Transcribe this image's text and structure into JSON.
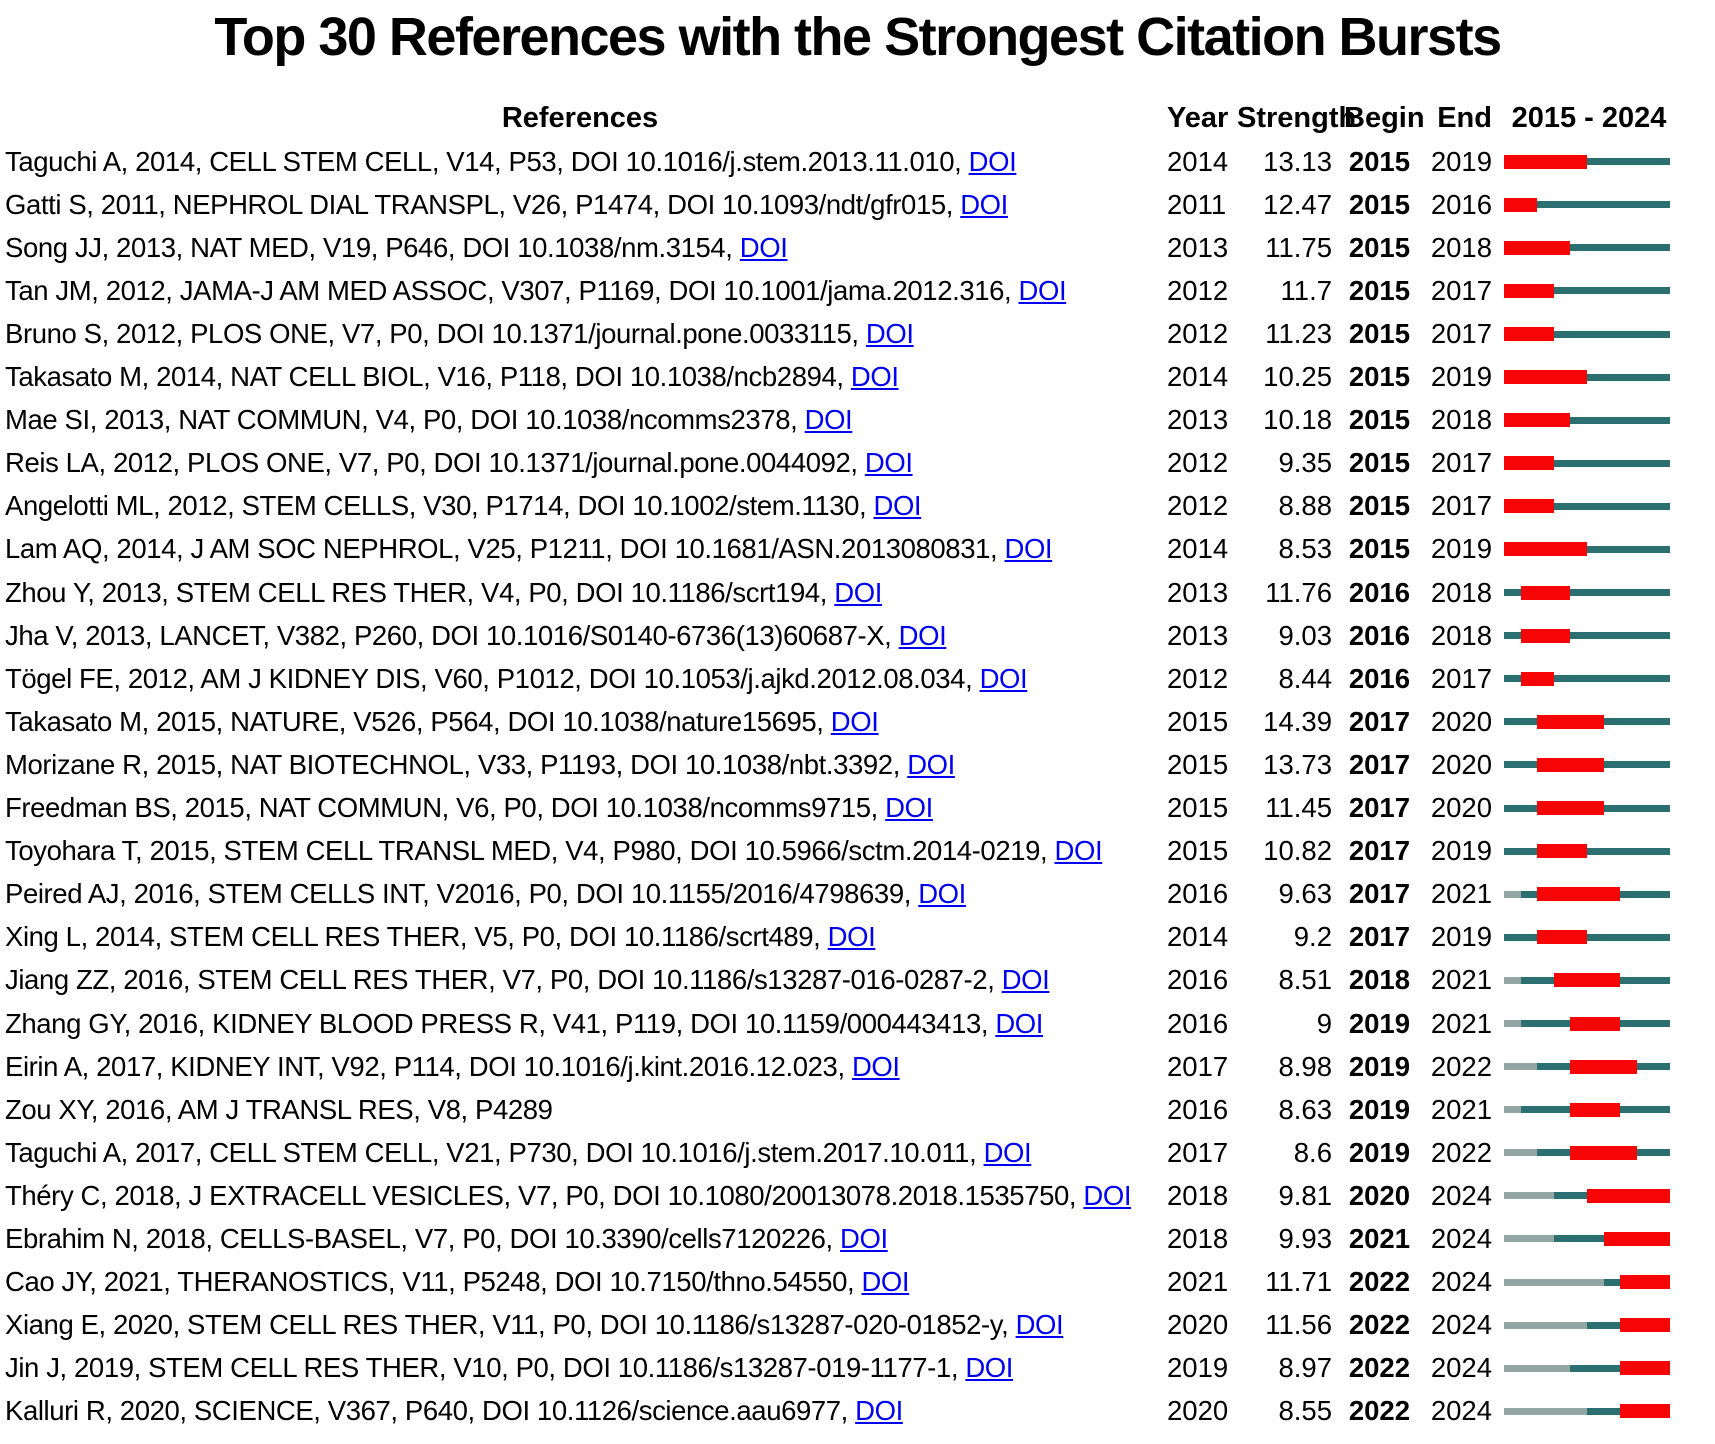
{
  "chart_data": {
    "type": "table",
    "title": "Top 30 References with the Strongest Citation Bursts",
    "columns": {
      "references": "References",
      "year": "Year",
      "strength": "Strength",
      "begin": "Begin",
      "end": "End",
      "period": "2015 - 2024"
    },
    "timeline": {
      "start": 2015,
      "end": 2024
    },
    "doi_link_label": "DOI",
    "colors": {
      "burst_red": "#f50505",
      "timeline_teal": "#2b6f70",
      "pre_publication_gray": "#94a6a4",
      "doi_link_blue": "#0000ee"
    },
    "rows": [
      {
        "reference": "Taguchi A, 2014, CELL STEM CELL, V14, P53, DOI 10.1016/j.stem.2013.11.010",
        "doi_link": true,
        "year": 2014,
        "strength": "13.13",
        "begin": 2015,
        "end": 2019
      },
      {
        "reference": "Gatti S, 2011, NEPHROL DIAL TRANSPL, V26, P1474, DOI 10.1093/ndt/gfr015",
        "doi_link": true,
        "year": 2011,
        "strength": "12.47",
        "begin": 2015,
        "end": 2016
      },
      {
        "reference": "Song JJ, 2013, NAT MED, V19, P646, DOI 10.1038/nm.3154",
        "doi_link": true,
        "year": 2013,
        "strength": "11.75",
        "begin": 2015,
        "end": 2018
      },
      {
        "reference": "Tan JM, 2012, JAMA-J AM MED ASSOC, V307, P1169, DOI 10.1001/jama.2012.316",
        "doi_link": true,
        "year": 2012,
        "strength": "11.7",
        "begin": 2015,
        "end": 2017
      },
      {
        "reference": "Bruno S, 2012, PLOS ONE, V7, P0, DOI 10.1371/journal.pone.0033115",
        "doi_link": true,
        "year": 2012,
        "strength": "11.23",
        "begin": 2015,
        "end": 2017
      },
      {
        "reference": "Takasato M, 2014, NAT CELL BIOL, V16, P118, DOI 10.1038/ncb2894",
        "doi_link": true,
        "year": 2014,
        "strength": "10.25",
        "begin": 2015,
        "end": 2019
      },
      {
        "reference": "Mae SI, 2013, NAT COMMUN, V4, P0, DOI 10.1038/ncomms2378",
        "doi_link": true,
        "year": 2013,
        "strength": "10.18",
        "begin": 2015,
        "end": 2018
      },
      {
        "reference": "Reis LA, 2012, PLOS ONE, V7, P0, DOI 10.1371/journal.pone.0044092",
        "doi_link": true,
        "year": 2012,
        "strength": "9.35",
        "begin": 2015,
        "end": 2017
      },
      {
        "reference": "Angelotti ML, 2012, STEM CELLS, V30, P1714, DOI 10.1002/stem.1130",
        "doi_link": true,
        "year": 2012,
        "strength": "8.88",
        "begin": 2015,
        "end": 2017
      },
      {
        "reference": "Lam AQ, 2014, J AM SOC NEPHROL, V25, P1211, DOI 10.1681/ASN.2013080831",
        "doi_link": true,
        "year": 2014,
        "strength": "8.53",
        "begin": 2015,
        "end": 2019
      },
      {
        "reference": "Zhou Y, 2013, STEM CELL RES THER, V4, P0, DOI 10.1186/scrt194",
        "doi_link": true,
        "year": 2013,
        "strength": "11.76",
        "begin": 2016,
        "end": 2018
      },
      {
        "reference": "Jha V, 2013, LANCET, V382, P260, DOI 10.1016/S0140-6736(13)60687-X",
        "doi_link": true,
        "year": 2013,
        "strength": "9.03",
        "begin": 2016,
        "end": 2018
      },
      {
        "reference": "Tögel FE, 2012, AM J KIDNEY DIS, V60, P1012, DOI 10.1053/j.ajkd.2012.08.034",
        "doi_link": true,
        "year": 2012,
        "strength": "8.44",
        "begin": 2016,
        "end": 2017
      },
      {
        "reference": "Takasato M, 2015, NATURE, V526, P564, DOI 10.1038/nature15695",
        "doi_link": true,
        "year": 2015,
        "strength": "14.39",
        "begin": 2017,
        "end": 2020
      },
      {
        "reference": "Morizane R, 2015, NAT BIOTECHNOL, V33, P1193, DOI 10.1038/nbt.3392",
        "doi_link": true,
        "year": 2015,
        "strength": "13.73",
        "begin": 2017,
        "end": 2020
      },
      {
        "reference": "Freedman BS, 2015, NAT COMMUN, V6, P0, DOI 10.1038/ncomms9715",
        "doi_link": true,
        "year": 2015,
        "strength": "11.45",
        "begin": 2017,
        "end": 2020
      },
      {
        "reference": "Toyohara T, 2015, STEM CELL TRANSL MED, V4, P980, DOI 10.5966/sctm.2014-0219",
        "doi_link": true,
        "year": 2015,
        "strength": "10.82",
        "begin": 2017,
        "end": 2019
      },
      {
        "reference": "Peired AJ, 2016, STEM CELLS INT, V2016, P0, DOI 10.1155/2016/4798639",
        "doi_link": true,
        "year": 2016,
        "strength": "9.63",
        "begin": 2017,
        "end": 2021
      },
      {
        "reference": "Xing L, 2014, STEM CELL RES THER, V5, P0, DOI 10.1186/scrt489",
        "doi_link": true,
        "year": 2014,
        "strength": "9.2",
        "begin": 2017,
        "end": 2019
      },
      {
        "reference": "Jiang ZZ, 2016, STEM CELL RES THER, V7, P0, DOI 10.1186/s13287-016-0287-2",
        "doi_link": true,
        "year": 2016,
        "strength": "8.51",
        "begin": 2018,
        "end": 2021
      },
      {
        "reference": "Zhang GY, 2016, KIDNEY BLOOD PRESS R, V41, P119, DOI 10.1159/000443413",
        "doi_link": true,
        "year": 2016,
        "strength": "9",
        "begin": 2019,
        "end": 2021
      },
      {
        "reference": "Eirin A, 2017, KIDNEY INT, V92, P114, DOI 10.1016/j.kint.2016.12.023",
        "doi_link": true,
        "year": 2017,
        "strength": "8.98",
        "begin": 2019,
        "end": 2022
      },
      {
        "reference": "Zou XY, 2016, AM J TRANSL RES, V8, P4289",
        "doi_link": false,
        "year": 2016,
        "strength": "8.63",
        "begin": 2019,
        "end": 2021
      },
      {
        "reference": "Taguchi A, 2017, CELL STEM CELL, V21, P730, DOI 10.1016/j.stem.2017.10.011",
        "doi_link": true,
        "year": 2017,
        "strength": "8.6",
        "begin": 2019,
        "end": 2022
      },
      {
        "reference": "Théry C, 2018, J EXTRACELL VESICLES, V7, P0, DOI 10.1080/20013078.2018.1535750",
        "doi_link": true,
        "year": 2018,
        "strength": "9.81",
        "begin": 2020,
        "end": 2024
      },
      {
        "reference": "Ebrahim N, 2018, CELLS-BASEL, V7, P0, DOI 10.3390/cells7120226",
        "doi_link": true,
        "year": 2018,
        "strength": "9.93",
        "begin": 2021,
        "end": 2024
      },
      {
        "reference": "Cao JY, 2021, THERANOSTICS, V11, P5248, DOI 10.7150/thno.54550",
        "doi_link": true,
        "year": 2021,
        "strength": "11.71",
        "begin": 2022,
        "end": 2024
      },
      {
        "reference": "Xiang E, 2020, STEM CELL RES THER, V11, P0, DOI 10.1186/s13287-020-01852-y",
        "doi_link": true,
        "year": 2020,
        "strength": "11.56",
        "begin": 2022,
        "end": 2024
      },
      {
        "reference": "Jin J, 2019, STEM CELL RES THER, V10, P0, DOI 10.1186/s13287-019-1177-1",
        "doi_link": true,
        "year": 2019,
        "strength": "8.97",
        "begin": 2022,
        "end": 2024
      },
      {
        "reference": "Kalluri R, 2020, SCIENCE, V367, P640, DOI 10.1126/science.aau6977",
        "doi_link": true,
        "year": 2020,
        "strength": "8.55",
        "begin": 2022,
        "end": 2024
      }
    ]
  }
}
